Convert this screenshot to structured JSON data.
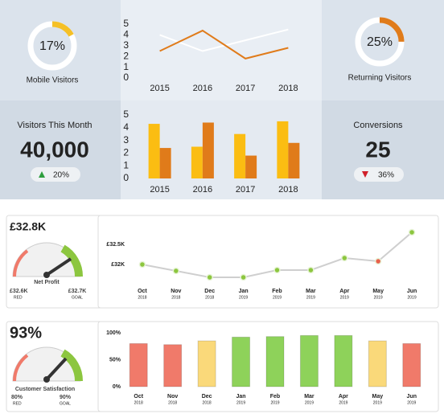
{
  "kpis": {
    "mobile_visitors": {
      "label": "Mobile Visitors",
      "value": 17,
      "value_label": "17%",
      "color": "#f5c026"
    },
    "returning_visitors": {
      "label": "Returning Visitors",
      "value": 25,
      "value_label": "25%",
      "color": "#e07b1a"
    },
    "visitors_this_month": {
      "label": "Visitors This Month",
      "value": "40,000",
      "change": "20%"
    },
    "conversions": {
      "label": "Conversions",
      "value": "25",
      "change": "36%"
    },
    "net_profit": {
      "value": "£32.8K",
      "label": "Net Profit",
      "red": "£32.6K",
      "red_label": "RED",
      "goal": "£32.7K",
      "goal_label": "GOAL"
    },
    "customer_satisfaction": {
      "value": "93%",
      "label": "Customer Satisfaction",
      "red": "80%",
      "red_label": "RED",
      "goal": "90%",
      "goal_label": "GOAL"
    }
  },
  "chart_data": [
    {
      "type": "line",
      "categories": [
        "2015",
        "2016",
        "2017",
        "2018"
      ],
      "series": [
        {
          "color": "#ffffff",
          "values": [
            4,
            2.5,
            3.5,
            4.5
          ]
        },
        {
          "color": "#e07b1a",
          "values": [
            2.5,
            4.4,
            1.8,
            2.8
          ]
        }
      ],
      "ylim": [
        0,
        5
      ],
      "yticks": [
        0,
        1,
        2,
        3,
        4,
        5
      ]
    },
    {
      "type": "bar",
      "categories": [
        "2015",
        "2016",
        "2017",
        "2018"
      ],
      "series": [
        {
          "color": "#fbbd12",
          "values": [
            4.3,
            2.5,
            3.5,
            4.5
          ]
        },
        {
          "color": "#e07b1a",
          "values": [
            2.4,
            4.4,
            1.8,
            2.8
          ]
        }
      ],
      "ylim": [
        0,
        5
      ],
      "yticks": [
        0,
        1,
        2,
        3,
        4,
        5
      ]
    },
    {
      "type": "line",
      "categories": [
        "Oct",
        "Nov",
        "Dec",
        "Jan",
        "Feb",
        "Mar",
        "Apr",
        "May",
        "Jun"
      ],
      "category_years": [
        "2018",
        "2018",
        "2018",
        "2019",
        "2019",
        "2019",
        "2019",
        "2019",
        "2019"
      ],
      "series": [
        {
          "color": "#cfcfcf",
          "values": [
            32.0,
            31.84,
            31.68,
            31.68,
            31.86,
            31.86,
            32.16,
            32.08,
            32.8
          ],
          "point_colors": [
            "#8cc63f",
            "#8cc63f",
            "#8cc63f",
            "#8cc63f",
            "#8cc63f",
            "#8cc63f",
            "#8cc63f",
            "#e8604c",
            "#8cc63f"
          ]
        }
      ],
      "ylim": [
        31.5,
        33.0
      ],
      "yticks": [
        {
          "value": 32,
          "label": "£32K"
        },
        {
          "value": 32.5,
          "label": "£32.5K"
        }
      ]
    },
    {
      "type": "bar",
      "categories": [
        "Oct",
        "Nov",
        "Dec",
        "Jan",
        "Feb",
        "Mar",
        "Apr",
        "May",
        "Jun"
      ],
      "category_years": [
        "2018",
        "2018",
        "2018",
        "2019",
        "2019",
        "2019",
        "2019",
        "2019",
        "2019"
      ],
      "series": [
        {
          "values": [
            80,
            78,
            85,
            92,
            93,
            95,
            95,
            85,
            80
          ],
          "bar_colors": [
            "#f07a6a",
            "#f07a6a",
            "#fad97a",
            "#8ed25a",
            "#8ed25a",
            "#8ed25a",
            "#8ed25a",
            "#fad97a",
            "#f07a6a"
          ]
        }
      ],
      "ylim": [
        0,
        100
      ],
      "yticks": [
        {
          "value": 0,
          "label": "0%"
        },
        {
          "value": 50,
          "label": "50%"
        },
        {
          "value": 100,
          "label": "100%"
        }
      ]
    }
  ]
}
